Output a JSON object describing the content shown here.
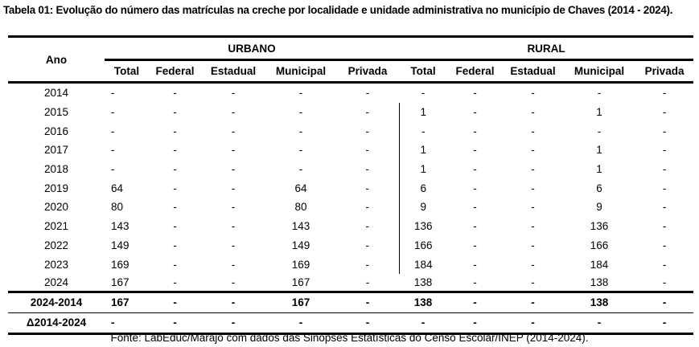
{
  "title": "Tabela 01: Evolução do número das matrículas na creche por localidade e unidade administrativa no município de Chaves (2014 - 2024).",
  "header": {
    "ano": "Ano",
    "groups": [
      "URBANO",
      "RURAL"
    ],
    "columns": [
      "Total",
      "Federal",
      "Estadual",
      "Municipal",
      "Privada",
      "Total",
      "Federal",
      "Estadual",
      "Municipal",
      "Privada"
    ]
  },
  "rows": [
    {
      "ano": "2014",
      "values": [
        "-",
        "-",
        "-",
        "-",
        "-",
        "-",
        "-",
        "-",
        "-",
        "-"
      ]
    },
    {
      "ano": "2015",
      "values": [
        "-",
        "-",
        "-",
        "-",
        "-",
        "1",
        "-",
        "-",
        "1",
        "-"
      ]
    },
    {
      "ano": "2016",
      "values": [
        "-",
        "-",
        "-",
        "-",
        "-",
        "-",
        "-",
        "-",
        "-",
        "-"
      ]
    },
    {
      "ano": "2017",
      "values": [
        "-",
        "-",
        "-",
        "-",
        "-",
        "1",
        "-",
        "-",
        "1",
        "-"
      ]
    },
    {
      "ano": "2018",
      "values": [
        "-",
        "-",
        "-",
        "-",
        "-",
        "1",
        "-",
        "-",
        "1",
        "-"
      ]
    },
    {
      "ano": "2019",
      "values": [
        "64",
        "-",
        "-",
        "64",
        "-",
        "6",
        "-",
        "-",
        "6",
        "-"
      ]
    },
    {
      "ano": "2020",
      "values": [
        "80",
        "-",
        "-",
        "80",
        "-",
        "9",
        "-",
        "-",
        "9",
        "-"
      ]
    },
    {
      "ano": "2021",
      "values": [
        "143",
        "-",
        "-",
        "143",
        "-",
        "136",
        "-",
        "-",
        "136",
        "-"
      ]
    },
    {
      "ano": "2022",
      "values": [
        "149",
        "-",
        "-",
        "149",
        "-",
        "166",
        "-",
        "-",
        "166",
        "-"
      ]
    },
    {
      "ano": "2023",
      "values": [
        "169",
        "-",
        "-",
        "169",
        "-",
        "184",
        "-",
        "-",
        "184",
        "-"
      ]
    },
    {
      "ano": "2024",
      "values": [
        "167",
        "-",
        "-",
        "167",
        "-",
        "138",
        "-",
        "-",
        "138",
        "-"
      ]
    }
  ],
  "summary": [
    {
      "ano": "2024-2014",
      "values": [
        "167",
        "-",
        "-",
        "167",
        "-",
        "138",
        "-",
        "-",
        "138",
        "-"
      ]
    },
    {
      "ano": "Δ2014-2024",
      "values": [
        "-",
        "-",
        "-",
        "-",
        "-",
        "-",
        "-",
        "-",
        "-",
        "-"
      ]
    }
  ],
  "source": "Fonte: LabEduc/Marajó com dados das Sinopses Estatísticas do Censo Escolar/INEP (2014-2024)."
}
